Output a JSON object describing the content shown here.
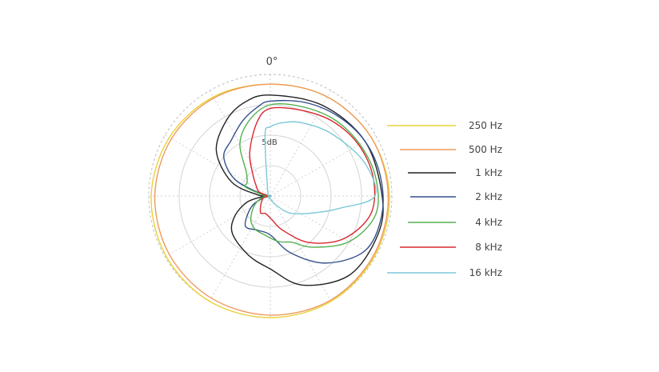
{
  "chart_data": {
    "type": "polar",
    "title": "",
    "angle_label": "0°",
    "radial_label": "5dB",
    "radial_rings": 4,
    "radial_spokes_deg": [
      0,
      30,
      60,
      90,
      120,
      150,
      180,
      210,
      240,
      270,
      300,
      330
    ],
    "r_max": 1.0,
    "legend_position": "right",
    "series": [
      {
        "name": "250 Hz",
        "color": "#e8d23a",
        "points": [
          [
            0,
            0.92
          ],
          [
            30,
            0.94
          ],
          [
            60,
            0.96
          ],
          [
            90,
            0.98
          ],
          [
            120,
            0.99
          ],
          [
            150,
            1.0
          ],
          [
            180,
            1.0
          ],
          [
            210,
            1.0
          ],
          [
            240,
            0.99
          ],
          [
            270,
            0.98
          ],
          [
            300,
            0.96
          ],
          [
            330,
            0.94
          ]
        ]
      },
      {
        "name": "500 Hz",
        "color": "#ee9a5c",
        "points": [
          [
            0,
            0.92
          ],
          [
            30,
            0.94
          ],
          [
            60,
            0.96
          ],
          [
            90,
            0.97
          ],
          [
            120,
            0.98
          ],
          [
            150,
            0.99
          ],
          [
            180,
            0.98
          ],
          [
            210,
            0.97
          ],
          [
            240,
            0.96
          ],
          [
            270,
            0.95
          ],
          [
            300,
            0.94
          ],
          [
            330,
            0.93
          ]
        ]
      },
      {
        "name": "1 kHz",
        "color": "#222222",
        "points": [
          [
            0,
            0.83
          ],
          [
            30,
            0.86
          ],
          [
            60,
            0.9
          ],
          [
            90,
            0.92
          ],
          [
            110,
            0.94
          ],
          [
            135,
            0.92
          ],
          [
            160,
            0.78
          ],
          [
            180,
            0.6
          ],
          [
            200,
            0.52
          ],
          [
            225,
            0.44
          ],
          [
            240,
            0.34
          ],
          [
            255,
            0.2
          ],
          [
            265,
            0.06
          ],
          [
            270,
            0.0
          ],
          [
            275,
            0.1
          ],
          [
            290,
            0.34
          ],
          [
            310,
            0.58
          ],
          [
            330,
            0.72
          ],
          [
            345,
            0.8
          ]
        ]
      },
      {
        "name": "2 kHz",
        "color": "#35508c",
        "points": [
          [
            0,
            0.78
          ],
          [
            20,
            0.82
          ],
          [
            40,
            0.86
          ],
          [
            60,
            0.9
          ],
          [
            80,
            0.92
          ],
          [
            100,
            0.93
          ],
          [
            120,
            0.9
          ],
          [
            140,
            0.72
          ],
          [
            160,
            0.5
          ],
          [
            180,
            0.32
          ],
          [
            200,
            0.3
          ],
          [
            220,
            0.32
          ],
          [
            240,
            0.18
          ],
          [
            255,
            0.06
          ],
          [
            270,
            0.0
          ],
          [
            280,
            0.06
          ],
          [
            295,
            0.32
          ],
          [
            310,
            0.5
          ],
          [
            325,
            0.56
          ],
          [
            340,
            0.66
          ],
          [
            352,
            0.74
          ]
        ]
      },
      {
        "name": "4 kHz",
        "color": "#52b050",
        "points": [
          [
            0,
            0.75
          ],
          [
            20,
            0.78
          ],
          [
            40,
            0.82
          ],
          [
            60,
            0.85
          ],
          [
            80,
            0.88
          ],
          [
            100,
            0.88
          ],
          [
            120,
            0.75
          ],
          [
            140,
            0.55
          ],
          [
            155,
            0.42
          ],
          [
            170,
            0.38
          ],
          [
            190,
            0.32
          ],
          [
            205,
            0.3
          ],
          [
            220,
            0.25
          ],
          [
            240,
            0.15
          ],
          [
            262,
            0.06
          ],
          [
            270,
            0.0
          ],
          [
            278,
            0.06
          ],
          [
            290,
            0.22
          ],
          [
            300,
            0.22
          ],
          [
            315,
            0.28
          ],
          [
            330,
            0.5
          ],
          [
            345,
            0.65
          ]
        ]
      },
      {
        "name": "8 kHz",
        "color": "#d92830",
        "points": [
          [
            0,
            0.72
          ],
          [
            20,
            0.75
          ],
          [
            40,
            0.8
          ],
          [
            60,
            0.84
          ],
          [
            80,
            0.86
          ],
          [
            100,
            0.84
          ],
          [
            120,
            0.7
          ],
          [
            140,
            0.5
          ],
          [
            160,
            0.3
          ],
          [
            175,
            0.2
          ],
          [
            195,
            0.15
          ],
          [
            210,
            0.16
          ],
          [
            230,
            0.1
          ],
          [
            255,
            0.06
          ],
          [
            270,
            0.02
          ],
          [
            290,
            0.1
          ],
          [
            305,
            0.14
          ],
          [
            320,
            0.22
          ],
          [
            335,
            0.4
          ],
          [
            350,
            0.62
          ]
        ]
      },
      {
        "name": "16 kHz",
        "color": "#7ccad8",
        "points": [
          [
            0,
            0.57
          ],
          [
            12,
            0.62
          ],
          [
            25,
            0.66
          ],
          [
            45,
            0.72
          ],
          [
            70,
            0.82
          ],
          [
            90,
            0.86
          ],
          [
            100,
            0.58
          ],
          [
            110,
            0.4
          ],
          [
            130,
            0.22
          ],
          [
            150,
            0.08
          ],
          [
            170,
            0.03
          ],
          [
            200,
            0.02
          ],
          [
            250,
            0.02
          ],
          [
            270,
            0.0
          ],
          [
            320,
            0.03
          ],
          [
            355,
            0.5
          ]
        ]
      }
    ]
  }
}
